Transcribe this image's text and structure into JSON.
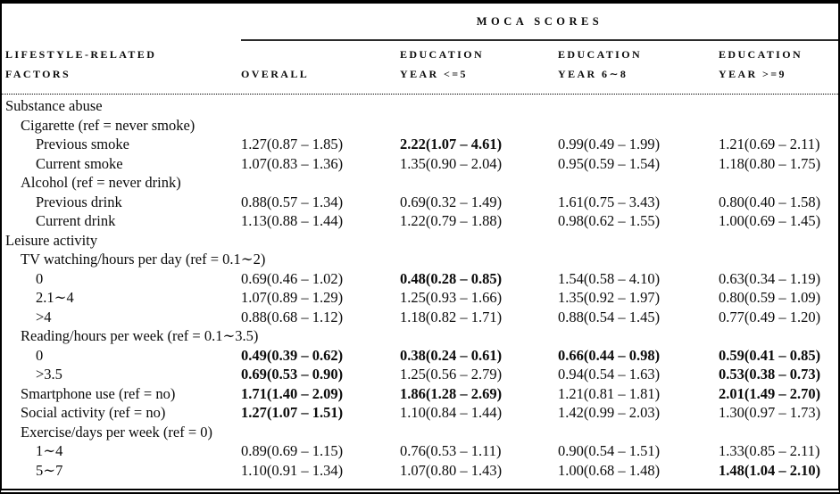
{
  "table": {
    "spanner": "MOCA SCORES",
    "header": {
      "factor_col": {
        "line1": "LIFESTYLE-RELATED",
        "line2": "FACTORS"
      },
      "columns": [
        {
          "line1": "",
          "line2": "OVERALL"
        },
        {
          "line1": "EDUCATION",
          "line2": "YEAR <=5"
        },
        {
          "line1": "EDUCATION",
          "line2": "YEAR 6∼8"
        },
        {
          "line1": "EDUCATION",
          "line2": "YEAR >=9"
        }
      ]
    },
    "rows": [
      {
        "label": "Substance abuse",
        "indent": 0,
        "values": [
          "",
          "",
          "",
          ""
        ],
        "bold": [
          false,
          false,
          false,
          false
        ]
      },
      {
        "label": "Cigarette (ref = never smoke)",
        "indent": 1,
        "values": [
          "",
          "",
          "",
          ""
        ],
        "bold": [
          false,
          false,
          false,
          false
        ]
      },
      {
        "label": "Previous smoke",
        "indent": 2,
        "values": [
          "1.27(0.87 – 1.85)",
          "2.22(1.07 – 4.61)",
          "0.99(0.49 – 1.99)",
          "1.21(0.69 – 2.11)"
        ],
        "bold": [
          false,
          true,
          false,
          false
        ]
      },
      {
        "label": "Current smoke",
        "indent": 2,
        "values": [
          "1.07(0.83 – 1.36)",
          "1.35(0.90 – 2.04)",
          "0.95(0.59 – 1.54)",
          "1.18(0.80 – 1.75)"
        ],
        "bold": [
          false,
          false,
          false,
          false
        ]
      },
      {
        "label": "Alcohol (ref = never drink)",
        "indent": 1,
        "values": [
          "",
          "",
          "",
          ""
        ],
        "bold": [
          false,
          false,
          false,
          false
        ]
      },
      {
        "label": "Previous drink",
        "indent": 2,
        "values": [
          "0.88(0.57 – 1.34)",
          "0.69(0.32 – 1.49)",
          "1.61(0.75 – 3.43)",
          "0.80(0.40 – 1.58)"
        ],
        "bold": [
          false,
          false,
          false,
          false
        ]
      },
      {
        "label": "Current drink",
        "indent": 2,
        "values": [
          "1.13(0.88 – 1.44)",
          "1.22(0.79 – 1.88)",
          "0.98(0.62 – 1.55)",
          "1.00(0.69 – 1.45)"
        ],
        "bold": [
          false,
          false,
          false,
          false
        ]
      },
      {
        "label": "Leisure activity",
        "indent": 0,
        "values": [
          "",
          "",
          "",
          ""
        ],
        "bold": [
          false,
          false,
          false,
          false
        ]
      },
      {
        "label": "TV watching/hours per day (ref = 0.1∼2)",
        "indent": 1,
        "values": [
          "",
          "",
          "",
          ""
        ],
        "bold": [
          false,
          false,
          false,
          false
        ]
      },
      {
        "label": "0",
        "indent": 2,
        "values": [
          "0.69(0.46 – 1.02)",
          "0.48(0.28 – 0.85)",
          "1.54(0.58 – 4.10)",
          "0.63(0.34 – 1.19)"
        ],
        "bold": [
          false,
          true,
          false,
          false
        ]
      },
      {
        "label": "2.1∼4",
        "indent": 2,
        "values": [
          "1.07(0.89 – 1.29)",
          "1.25(0.93 – 1.66)",
          "1.35(0.92 – 1.97)",
          "0.80(0.59 – 1.09)"
        ],
        "bold": [
          false,
          false,
          false,
          false
        ]
      },
      {
        "label": ">4",
        "indent": 2,
        "values": [
          "0.88(0.68 – 1.12)",
          "1.18(0.82 – 1.71)",
          "0.88(0.54 – 1.45)",
          "0.77(0.49 – 1.20)"
        ],
        "bold": [
          false,
          false,
          false,
          false
        ]
      },
      {
        "label": "Reading/hours per week (ref = 0.1∼3.5)",
        "indent": 1,
        "values": [
          "",
          "",
          "",
          ""
        ],
        "bold": [
          false,
          false,
          false,
          false
        ]
      },
      {
        "label": "0",
        "indent": 2,
        "values": [
          "0.49(0.39 – 0.62)",
          "0.38(0.24 – 0.61)",
          "0.66(0.44 – 0.98)",
          "0.59(0.41 – 0.85)"
        ],
        "bold": [
          true,
          true,
          true,
          true
        ]
      },
      {
        "label": ">3.5",
        "indent": 2,
        "values": [
          "0.69(0.53 – 0.90)",
          "1.25(0.56 – 2.79)",
          "0.94(0.54 – 1.63)",
          "0.53(0.38 – 0.73)"
        ],
        "bold": [
          true,
          false,
          false,
          true
        ]
      },
      {
        "label": "Smartphone use (ref = no)",
        "indent": 1,
        "values": [
          "1.71(1.40 – 2.09)",
          "1.86(1.28 – 2.69)",
          "1.21(0.81 – 1.81)",
          "2.01(1.49 – 2.70)"
        ],
        "bold": [
          true,
          true,
          false,
          true
        ]
      },
      {
        "label": "Social activity (ref = no)",
        "indent": 1,
        "values": [
          "1.27(1.07 – 1.51)",
          "1.10(0.84 – 1.44)",
          "1.42(0.99 – 2.03)",
          "1.30(0.97 – 1.73)"
        ],
        "bold": [
          true,
          false,
          false,
          false
        ]
      },
      {
        "label": "Exercise/days per week (ref = 0)",
        "indent": 1,
        "values": [
          "",
          "",
          "",
          ""
        ],
        "bold": [
          false,
          false,
          false,
          false
        ]
      },
      {
        "label": "1∼4",
        "indent": 2,
        "values": [
          "0.89(0.69 – 1.15)",
          "0.76(0.53 – 1.11)",
          "0.90(0.54 – 1.51)",
          "1.33(0.85 – 2.11)"
        ],
        "bold": [
          false,
          false,
          false,
          false
        ]
      },
      {
        "label": "5∼7",
        "indent": 2,
        "values": [
          "1.10(0.91 – 1.34)",
          "1.07(0.80 – 1.43)",
          "1.00(0.68 – 1.48)",
          "1.48(1.04 – 2.10)"
        ],
        "bold": [
          false,
          false,
          false,
          true
        ]
      }
    ]
  },
  "colors": {
    "text": "#0b0b0b",
    "border": "#000000",
    "background": "#ffffff"
  }
}
